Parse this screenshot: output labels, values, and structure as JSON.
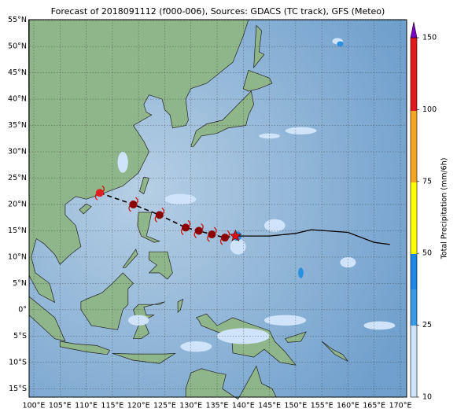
{
  "title": "Forecast of 2018091112 (f000-006), Sources: GDACS (TC track), GFS (Meteo)",
  "map": {
    "xlim": [
      99.1,
      171.2
    ],
    "ylim": [
      -16.6,
      55.1
    ],
    "grid": true,
    "xticks": [
      {
        "value": 100,
        "label": "100°E"
      },
      {
        "value": 105,
        "label": "105°E"
      },
      {
        "value": 110,
        "label": "110°E"
      },
      {
        "value": 115,
        "label": "115°E"
      },
      {
        "value": 120,
        "label": "120°E"
      },
      {
        "value": 125,
        "label": "125°E"
      },
      {
        "value": 130,
        "label": "130°E"
      },
      {
        "value": 135,
        "label": "135°E"
      },
      {
        "value": 140,
        "label": "140°E"
      },
      {
        "value": 145,
        "label": "145°E"
      },
      {
        "value": 150,
        "label": "150°E"
      },
      {
        "value": 155,
        "label": "155°E"
      },
      {
        "value": 160,
        "label": "160°E"
      },
      {
        "value": 165,
        "label": "165°E"
      },
      {
        "value": 170,
        "label": "170°E"
      }
    ],
    "yticks": [
      {
        "value": 55,
        "label": "55°N"
      },
      {
        "value": 50,
        "label": "50°N"
      },
      {
        "value": 45,
        "label": "45°N"
      },
      {
        "value": 40,
        "label": "40°N"
      },
      {
        "value": 35,
        "label": "35°N"
      },
      {
        "value": 30,
        "label": "30°N"
      },
      {
        "value": 25,
        "label": "25°N"
      },
      {
        "value": 20,
        "label": "20°N"
      },
      {
        "value": 15,
        "label": "15°N"
      },
      {
        "value": 10,
        "label": "10°N"
      },
      {
        "value": 5,
        "label": "5°N"
      },
      {
        "value": 0,
        "label": "0°"
      },
      {
        "value": -5,
        "label": "5°S"
      },
      {
        "value": -10,
        "label": "10°S"
      },
      {
        "value": -15,
        "label": "15°S"
      }
    ]
  },
  "colorbar": {
    "label": "Total Precipitation (mm/6h)",
    "ticks": [
      10,
      25,
      50,
      75,
      100,
      150
    ]
  }
}
